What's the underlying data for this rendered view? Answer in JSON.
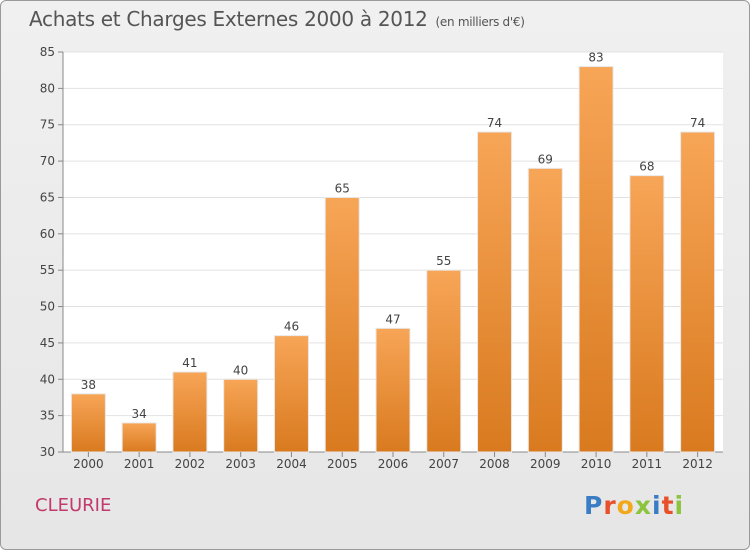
{
  "header": {
    "title": "Achats et Charges Externes 2000 à 2012",
    "subtitle": "(en milliers d'€)"
  },
  "footer": {
    "commune": "CLEURIE",
    "logo_text": "Proxiti",
    "logo_colors": [
      "#3b7dc4",
      "#e8502b",
      "#f2a81d",
      "#8cc43d",
      "#3b7dc4",
      "#e8502b",
      "#8cc43d"
    ]
  },
  "chart_data": {
    "type": "bar",
    "categories": [
      "2000",
      "2001",
      "2002",
      "2003",
      "2004",
      "2005",
      "2006",
      "2007",
      "2008",
      "2009",
      "2010",
      "2011",
      "2012"
    ],
    "values": [
      38,
      34,
      41,
      40,
      46,
      65,
      47,
      55,
      74,
      69,
      83,
      68,
      74
    ],
    "ylim": [
      30,
      85
    ],
    "yticks": [
      30,
      35,
      40,
      45,
      50,
      55,
      60,
      65,
      70,
      75,
      80,
      85
    ],
    "grid": true,
    "bar_color_top": "#f7a557",
    "bar_color_bottom": "#d97a1f"
  }
}
